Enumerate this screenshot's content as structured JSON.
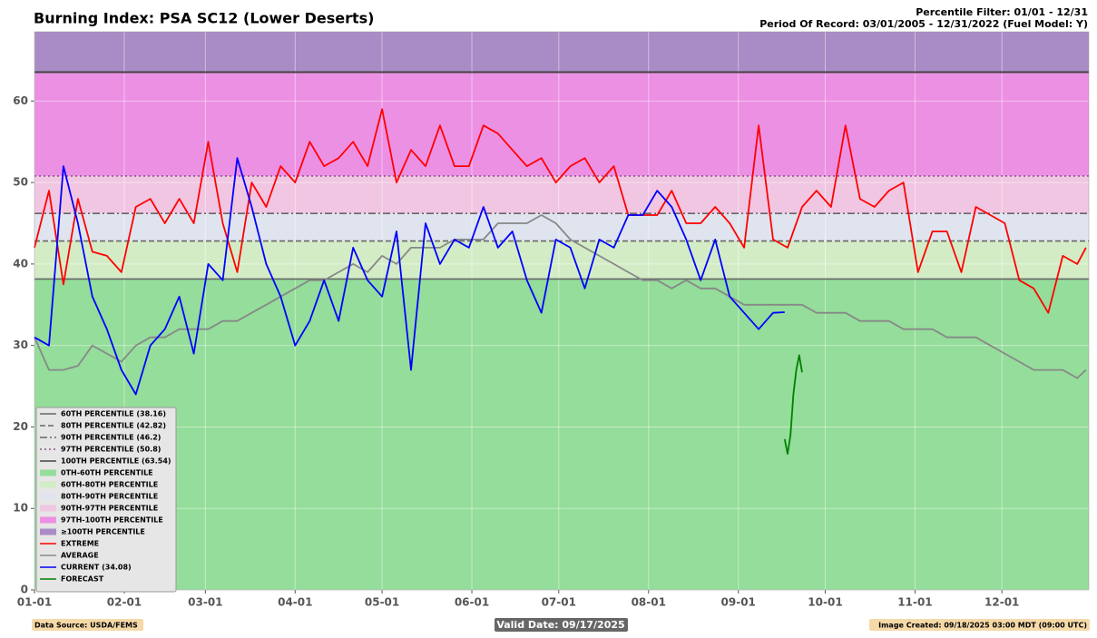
{
  "chart_data": {
    "type": "line",
    "title": "Burning Index: PSA SC12 (Lower Deserts)",
    "subtitle": [
      "Percentile Filter: 01/01 - 12/31",
      "Period Of Record: 03/01/2005 - 12/31/2022 (Fuel Model: Y)"
    ],
    "footer": {
      "source": "Data Source: USDA/FEMS",
      "valid": "Valid Date: 09/17/2025",
      "created": "Image Created: 09/18/2025 03:00 MDT (09:00 UTC)"
    },
    "xlim": [
      0,
      364
    ],
    "xticks": [
      {
        "value": 0,
        "label": "01-01"
      },
      {
        "value": 31,
        "label": "02-01"
      },
      {
        "value": 59,
        "label": "03-01"
      },
      {
        "value": 90,
        "label": "04-01"
      },
      {
        "value": 120,
        "label": "05-01"
      },
      {
        "value": 151,
        "label": "06-01"
      },
      {
        "value": 181,
        "label": "07-01"
      },
      {
        "value": 212,
        "label": "08-01"
      },
      {
        "value": 243,
        "label": "09-01"
      },
      {
        "value": 273,
        "label": "10-01"
      },
      {
        "value": 304,
        "label": "11-01"
      },
      {
        "value": 334,
        "label": "12-01"
      }
    ],
    "ylim": [
      0,
      68.5
    ],
    "yticks": [
      0,
      10,
      20,
      30,
      40,
      50,
      60
    ],
    "grid": true,
    "legend": "lower left",
    "thresholds": [
      {
        "name": "60TH PERCENTILE (38.16)",
        "value": 38.16,
        "style": "solid",
        "color": "#666666"
      },
      {
        "name": "80TH PERCENTILE (42.82)",
        "value": 42.82,
        "style": "dashed",
        "color": "#666666"
      },
      {
        "name": "90TH PERCENTILE (46.2)",
        "value": 46.2,
        "style": "dashdot",
        "color": "#666666"
      },
      {
        "name": "97TH PERCENTILE (50.8)",
        "value": 50.8,
        "style": "dotted",
        "color": "#8a5a8a"
      },
      {
        "name": "100TH PERCENTILE (63.54)",
        "value": 63.54,
        "style": "solid",
        "color": "#444444"
      }
    ],
    "bands": [
      {
        "name": "0TH-60TH PERCENTILE",
        "color": "#94dd9a"
      },
      {
        "name": "60TH-80TH PERCENTILE",
        "color": "#d3ecc6"
      },
      {
        "name": "80TH-90TH PERCENTILE",
        "color": "#dfe4ee"
      },
      {
        "name": "90TH-97TH PERCENTILE",
        "color": "#f0c6e2"
      },
      {
        "name": "97TH-100TH PERCENTILE",
        "color": "#ec90e4"
      },
      {
        "name": "≥100TH PERCENTILE",
        "color": "#a98bc5"
      }
    ],
    "series": [
      {
        "name": "EXTREME",
        "color": "#ff0000",
        "x": [
          0,
          5,
          10,
          15,
          20,
          25,
          30,
          35,
          40,
          45,
          50,
          55,
          60,
          65,
          70,
          75,
          80,
          85,
          90,
          95,
          100,
          105,
          110,
          115,
          120,
          125,
          130,
          135,
          140,
          145,
          150,
          155,
          160,
          165,
          170,
          175,
          180,
          185,
          190,
          195,
          200,
          205,
          210,
          215,
          220,
          225,
          230,
          235,
          240,
          245,
          250,
          255,
          260,
          265,
          270,
          275,
          280,
          285,
          290,
          295,
          300,
          305,
          310,
          315,
          320,
          325,
          330,
          335,
          340,
          345,
          350,
          355,
          360,
          363
        ],
        "values": [
          42,
          49,
          37.5,
          48,
          41.5,
          41,
          39,
          47,
          48,
          45,
          48,
          45,
          55,
          45,
          39,
          50,
          47,
          52,
          50,
          55,
          52,
          53,
          55,
          52,
          59,
          50,
          54,
          52,
          57,
          52,
          52,
          57,
          56,
          54,
          52,
          53,
          50,
          52,
          53,
          50,
          52,
          46,
          46,
          46,
          49,
          45,
          45,
          47,
          45,
          42,
          57,
          43,
          42,
          47,
          49,
          47,
          57,
          48,
          47,
          49,
          50,
          39,
          44,
          44,
          39,
          47,
          46,
          45,
          38,
          37,
          34,
          41,
          40,
          42
        ]
      },
      {
        "name": "AVERAGE",
        "color": "#888888",
        "x": [
          0,
          5,
          10,
          15,
          20,
          25,
          30,
          35,
          40,
          45,
          50,
          55,
          60,
          65,
          70,
          75,
          80,
          85,
          90,
          95,
          100,
          105,
          110,
          115,
          120,
          125,
          130,
          135,
          140,
          145,
          150,
          155,
          160,
          165,
          170,
          175,
          180,
          185,
          190,
          195,
          200,
          205,
          210,
          215,
          220,
          225,
          230,
          235,
          240,
          245,
          250,
          255,
          260,
          265,
          270,
          275,
          280,
          285,
          290,
          295,
          300,
          305,
          310,
          315,
          320,
          325,
          330,
          335,
          340,
          345,
          350,
          355,
          360,
          363
        ],
        "values": [
          31,
          27,
          27,
          27.5,
          30,
          29,
          28,
          30,
          31,
          31,
          32,
          32,
          32,
          33,
          33,
          34,
          35,
          36,
          37,
          38,
          38,
          39,
          40,
          39,
          41,
          40,
          42,
          42,
          42,
          43,
          43,
          43,
          45,
          45,
          45,
          46,
          45,
          43,
          42,
          41,
          40,
          39,
          38,
          38,
          37,
          38,
          37,
          37,
          36,
          35,
          35,
          35,
          35,
          35,
          34,
          34,
          34,
          33,
          33,
          33,
          32,
          32,
          32,
          31,
          31,
          31,
          30,
          29,
          28,
          27,
          27,
          27,
          26,
          27
        ]
      },
      {
        "name": "CURRENT (34.08)",
        "color": "#0000ff",
        "x": [
          0,
          5,
          10,
          15,
          20,
          25,
          30,
          35,
          40,
          45,
          50,
          55,
          60,
          65,
          70,
          75,
          80,
          85,
          90,
          95,
          100,
          105,
          110,
          115,
          120,
          125,
          130,
          135,
          140,
          145,
          150,
          155,
          160,
          165,
          170,
          175,
          180,
          185,
          190,
          195,
          200,
          205,
          210,
          215,
          220,
          225,
          230,
          235,
          240,
          245,
          250,
          255,
          259
        ],
        "values": [
          31,
          30,
          52,
          45,
          36,
          32,
          27,
          24,
          30,
          32,
          36,
          29,
          40,
          38,
          53,
          47,
          40,
          36,
          30,
          33,
          38,
          33,
          42,
          38,
          36,
          44,
          27,
          45,
          40,
          43,
          42,
          47,
          42,
          44,
          38,
          34,
          43,
          42,
          37,
          43,
          42,
          46,
          46,
          49,
          47,
          43,
          38,
          43,
          36,
          34,
          32,
          34,
          34.08
        ]
      },
      {
        "name": "FORECAST",
        "color": "#008000",
        "x": [
          259,
          260,
          261,
          262,
          263,
          264,
          265
        ],
        "values": [
          18.5,
          16.7,
          19,
          24,
          27,
          28.8,
          26.7
        ]
      }
    ]
  }
}
